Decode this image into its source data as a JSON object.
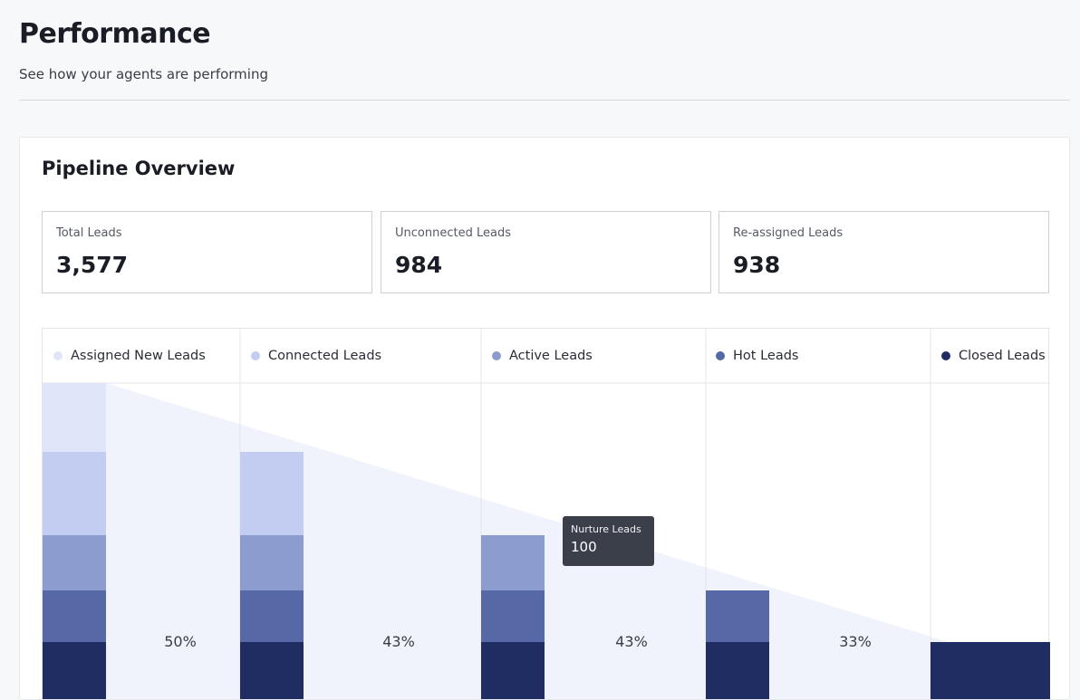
{
  "page": {
    "title": "Performance",
    "subtitle": "See how your agents are performing"
  },
  "card": {
    "title": "Pipeline Overview"
  },
  "stats": [
    {
      "label": "Total Leads",
      "value": "3,577"
    },
    {
      "label": "Unconnected Leads",
      "value": "984"
    },
    {
      "label": "Re-assigned Leads",
      "value": "938"
    }
  ],
  "colors": {
    "assigned_new": "#e0e5f9",
    "connected": "#c2cdf1",
    "active": "#8d9ccf",
    "hot": "#5668a6",
    "closed": "#202d63",
    "funnel_fill": "#f0f3fb"
  },
  "chart_data": {
    "type": "bar",
    "categories": [
      "Assigned New Leads",
      "Connected Leads",
      "Active Leads",
      "Hot Leads",
      "Closed Leads"
    ],
    "series": [
      {
        "name": "Assigned New Leads",
        "color_key": "assigned_new"
      },
      {
        "name": "Connected Leads",
        "color_key": "connected"
      },
      {
        "name": "Active Leads",
        "color_key": "active"
      },
      {
        "name": "Hot Leads",
        "color_key": "hot"
      },
      {
        "name": "Closed Leads",
        "color_key": "closed"
      }
    ],
    "conversion_rates": [
      "50%",
      "43%",
      "43%",
      "33%"
    ],
    "tooltip": {
      "label": "Nurture Leads",
      "value": "100"
    }
  }
}
